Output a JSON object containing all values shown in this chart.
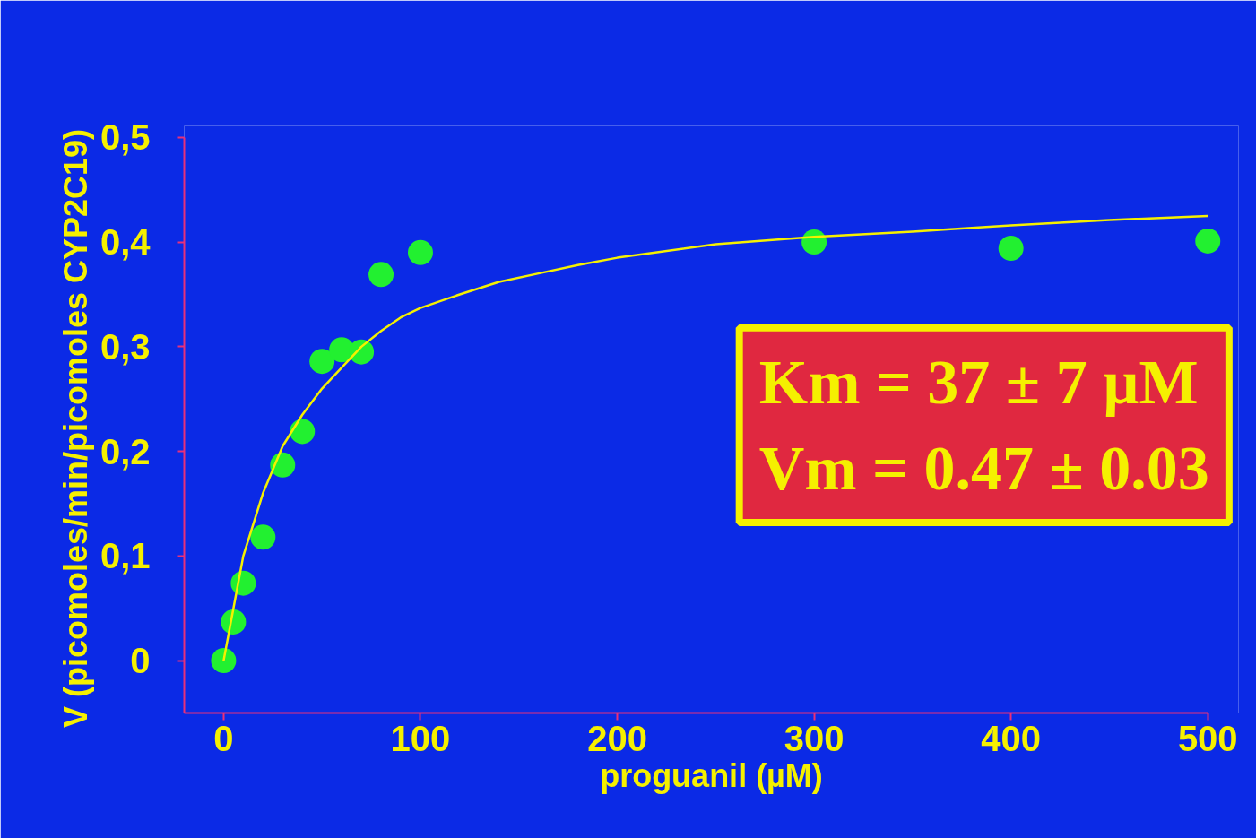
{
  "chart_data": {
    "type": "scatter",
    "xlabel": "proguanil (µM)",
    "ylabel": "V  (picomoles/min/picomoles  CYP2C19)",
    "annotations": [
      "Km = 37 ± 7 µM",
      "Vm = 0.47 ± 0.03"
    ],
    "xlim": [
      -20,
      500
    ],
    "ylim": [
      -0.05,
      0.5
    ],
    "xticks": [
      0,
      100,
      200,
      300,
      400,
      500
    ],
    "yticks": [
      0,
      {
        "value": 0.1,
        "label": "0,1"
      },
      {
        "value": 0.2,
        "label": "0,2"
      },
      {
        "value": 0.3,
        "label": "0,3"
      },
      {
        "value": 0.4,
        "label": "0,4"
      },
      {
        "value": 0.5,
        "label": "0,5"
      }
    ],
    "series": [
      {
        "type": "line",
        "color": "#f5f000",
        "line_style": "solid",
        "x": [
          0,
          2,
          5,
          10,
          20,
          30,
          40,
          50,
          60,
          70,
          80,
          90,
          100,
          120,
          140,
          160,
          180,
          200,
          250,
          300,
          350,
          400,
          450,
          500
        ],
        "values": [
          0,
          0.02,
          0.05,
          0.1,
          0.16,
          0.205,
          0.235,
          0.26,
          0.28,
          0.3,
          0.315,
          0.328,
          0.337,
          0.35,
          0.362,
          0.37,
          0.378,
          0.385,
          0.398,
          0.405,
          0.41,
          0.416,
          0.421,
          0.425
        ]
      },
      {
        "color": "#22f030",
        "marker": "circle",
        "x": [
          0,
          5,
          10,
          20,
          30,
          40,
          50,
          60,
          70,
          80,
          100,
          300,
          400,
          500
        ],
        "values": [
          0,
          0.037,
          0.074,
          0.118,
          0.187,
          0.219,
          0.286,
          0.297,
          0.295,
          0.369,
          0.39,
          0.4,
          0.394,
          0.401
        ]
      }
    ]
  }
}
